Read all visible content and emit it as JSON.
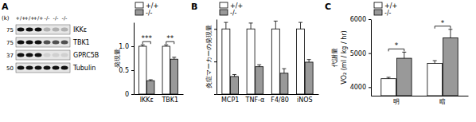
{
  "chart_data": [
    {
      "type": "bar",
      "title": "A",
      "y_label": "発現量",
      "categories": [
        "IKKε",
        "TBK1"
      ],
      "series": [
        {
          "name": "+/+",
          "color": "#ffffff",
          "values": [
            1.0,
            1.0
          ],
          "errors": [
            0.03,
            0.03
          ]
        },
        {
          "name": "-/-",
          "color": "#999999",
          "values": [
            0.28,
            0.73
          ],
          "errors": [
            0.02,
            0.04
          ]
        }
      ],
      "ylim": [
        0,
        1.5
      ],
      "yticks": [
        0,
        0.5,
        {
          "value": 1,
          "label": "1.0"
        }
      ],
      "legend": "top-left",
      "annotations": [
        "***",
        "**"
      ]
    },
    {
      "type": "bar",
      "title": "B",
      "y_label": "炎症マーカーの発現量",
      "categories": [
        "MCP1",
        "TNF-α",
        "F4/80",
        "iNOS"
      ],
      "series": [
        {
          "name": "+/+",
          "color": "#ffffff",
          "values": [
            1.0,
            1.0,
            1.0,
            1.0
          ],
          "errors": [
            0.1,
            0.09,
            0.12,
            0.1
          ]
        },
        {
          "name": "-/-",
          "color": "#999999",
          "values": [
            0.27,
            0.42,
            0.32,
            0.49
          ],
          "errors": [
            0.03,
            0.03,
            0.07,
            0.04
          ]
        }
      ],
      "ylim": [
        0,
        1.15
      ],
      "yticks": [
        0,
        0.5,
        {
          "value": 1,
          "label": "1.0"
        }
      ],
      "tick_labels": "x",
      "legend": "top-left"
    },
    {
      "type": "bar",
      "title": "C",
      "y_label": [
        "代謝量",
        "VO₂ (ml / kg / hr)"
      ],
      "categories": [
        "明",
        "暗"
      ],
      "series": [
        {
          "name": "+/+",
          "color": "#ffffff",
          "values": [
            4250,
            4700
          ],
          "errors": [
            40,
            80
          ]
        },
        {
          "name": "-/-",
          "color": "#999999",
          "values": [
            4850,
            5450
          ],
          "errors": [
            180,
            250
          ]
        }
      ],
      "ylim": [
        3750,
        6000
      ],
      "yticks": [
        4000,
        5000,
        6000
      ],
      "legend": "top-left",
      "annotations": [
        "*",
        "*"
      ]
    }
  ],
  "blot": {
    "units": "(k)",
    "lanes": [
      "+/+",
      "+/+",
      "+/+",
      "-/-",
      "-/-",
      "-/-"
    ],
    "rows": [
      {
        "label": "IKKε",
        "marker": 75
      },
      {
        "label": "TBK1",
        "marker": 75
      },
      {
        "label": "GPRC5B",
        "marker": 37
      },
      {
        "label": "Tubulin",
        "marker": 50
      }
    ]
  }
}
